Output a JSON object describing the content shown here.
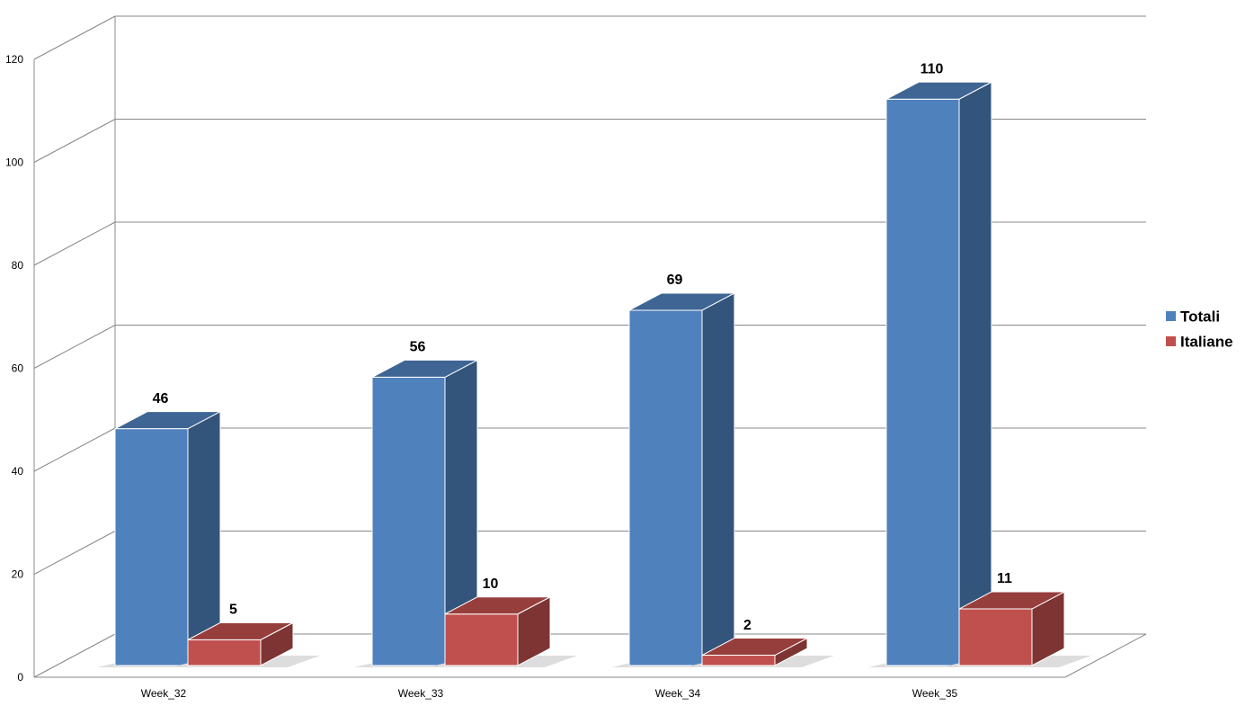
{
  "chart_data": {
    "type": "bar3d",
    "categories": [
      "Week_32",
      "Week_33",
      "Week_34",
      "Week_35"
    ],
    "series": [
      {
        "name": "Totali",
        "color": "#4f81bd",
        "values": [
          46,
          56,
          69,
          110
        ]
      },
      {
        "name": "Italiane",
        "color": "#c0504d",
        "values": [
          5,
          10,
          2,
          11
        ]
      }
    ],
    "ylim": [
      0,
      120
    ],
    "yticks": [
      0,
      20,
      40,
      60,
      80,
      100,
      120
    ],
    "grid": true,
    "legend": "right"
  }
}
